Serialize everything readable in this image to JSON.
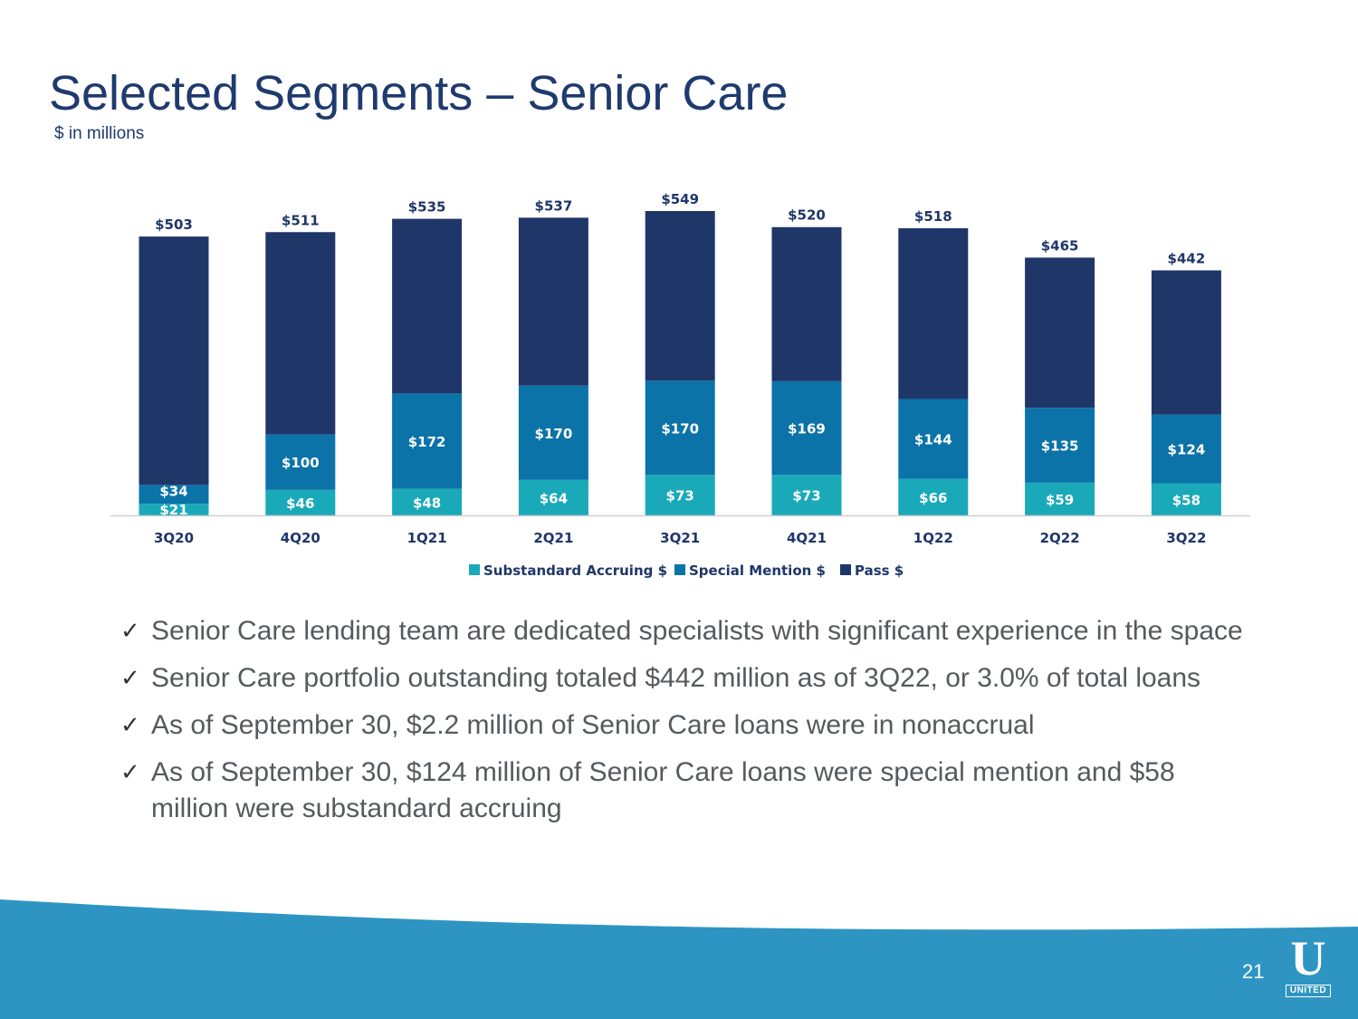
{
  "slide": {
    "title": "Selected Segments – Senior Care",
    "subtitle": "$ in millions",
    "page_number": "21",
    "logo_text": "UNITED",
    "logo_letter": "U"
  },
  "bullets": [
    "Senior Care lending team are dedicated specialists with significant experience in the space",
    "Senior Care portfolio outstanding totaled $442 million as of 3Q22, or 3.0% of total loans",
    "As of September 30, $2.2 million of Senior Care loans were in nonaccrual",
    "As of September 30, $124 million of Senior Care loans were special mention and $58 million were substandard accruing"
  ],
  "check_glyph": "✓",
  "colors": {
    "substandard": "#1aa9b8",
    "special_mention": "#0b73a8",
    "pass": "#1f3669",
    "title": "#1f3a6e",
    "footer": "#2e95c3"
  },
  "chart_data": {
    "type": "bar",
    "stacked": true,
    "categories": [
      "3Q20",
      "4Q20",
      "1Q21",
      "2Q21",
      "3Q21",
      "4Q21",
      "1Q22",
      "2Q22",
      "3Q22"
    ],
    "series": [
      {
        "name": "Substandard Accruing $",
        "values": [
          21,
          46,
          48,
          64,
          73,
          73,
          66,
          59,
          58
        ],
        "labels": [
          "$21",
          "$46",
          "$48",
          "$64",
          "$73",
          "$73",
          "$66",
          "$59",
          "$58"
        ]
      },
      {
        "name": "Special Mention $",
        "values": [
          34,
          100,
          172,
          170,
          170,
          169,
          144,
          135,
          124
        ],
        "labels": [
          "$34",
          "$100",
          "$172",
          "$170",
          "$170",
          "$169",
          "$144",
          "$135",
          "$124"
        ]
      },
      {
        "name": "Pass $",
        "values": [
          448,
          365,
          315,
          303,
          306,
          278,
          308,
          271,
          260
        ]
      }
    ],
    "totals": [
      503,
      511,
      535,
      537,
      549,
      520,
      518,
      465,
      442
    ],
    "total_labels": [
      "$503",
      "$511",
      "$535",
      "$537",
      "$549",
      "$520",
      "$518",
      "$465",
      "$442"
    ],
    "ylim": [
      0,
      549
    ],
    "legend_position": "bottom-center",
    "title": "",
    "xlabel": "",
    "ylabel": ""
  }
}
